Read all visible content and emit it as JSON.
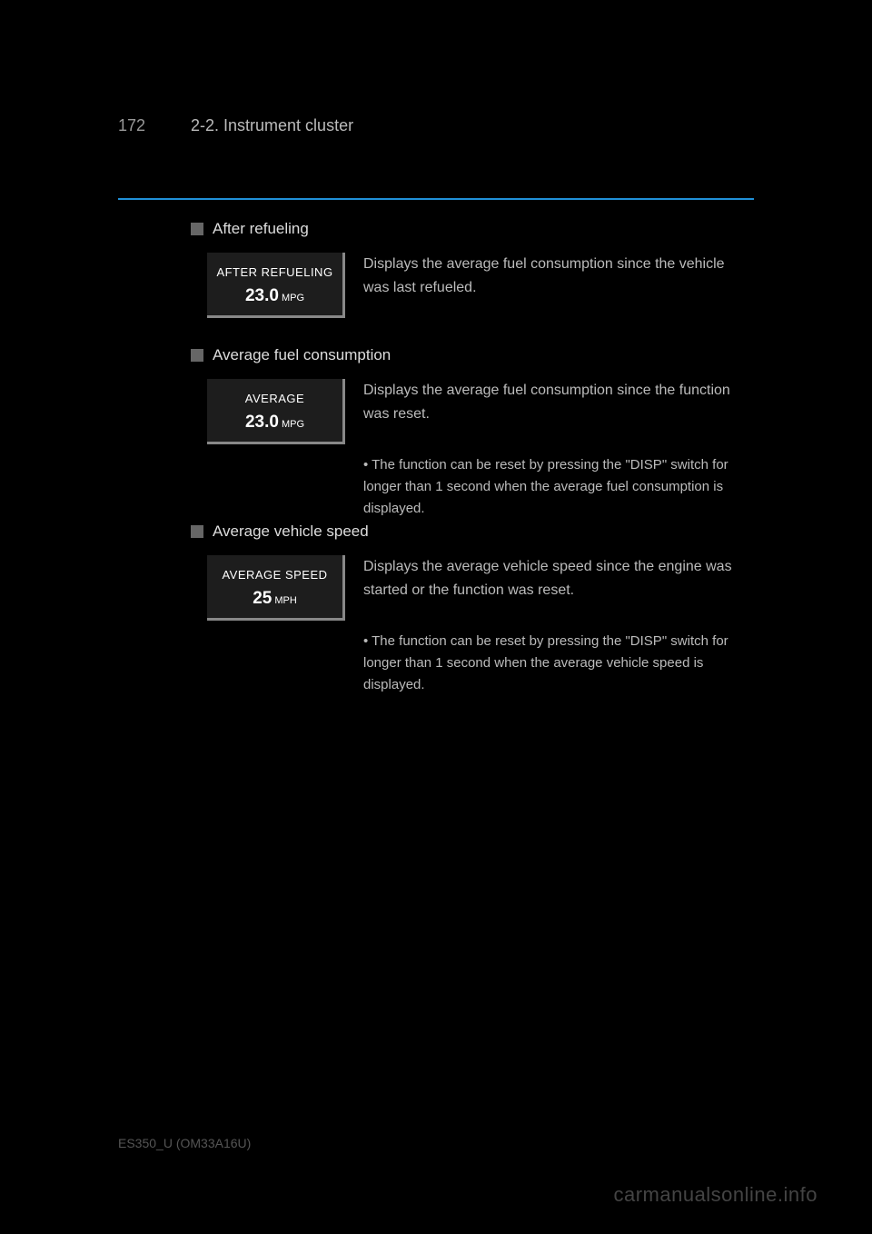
{
  "page": {
    "number": "172",
    "title": "2-2. Instrument cluster"
  },
  "divider": {
    "color": "#2090d8"
  },
  "sections": [
    {
      "header": "After refueling",
      "display": {
        "label": "AFTER REFUELING",
        "value": "23.0",
        "unit": "MPG"
      },
      "description": "Displays the average fuel consumption since the vehicle was last refueled."
    },
    {
      "header": "Average fuel consumption",
      "display": {
        "label": "AVERAGE",
        "value": "23.0",
        "unit": "MPG"
      },
      "description": "Displays the average fuel consumption since the function was reset.",
      "note": "• The function can be reset by pressing the \"DISP\" switch for longer than 1 second when the average fuel consumption is displayed."
    },
    {
      "header": "Average vehicle speed",
      "display": {
        "label": "AVERAGE SPEED",
        "value": "25",
        "unit": "MPH"
      },
      "description": "Displays the average vehicle speed since the engine was started or the function was reset.",
      "note": "• The function can be reset by pressing the \"DISP\" switch for longer than 1 second when the average vehicle speed is displayed."
    }
  ],
  "footer": {
    "manual_year": "ES350_U (OM33A16U)",
    "watermark": "carmanualsonline.info"
  }
}
